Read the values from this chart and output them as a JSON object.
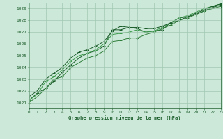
{
  "title": "Graphe pression niveau de la mer (hPa)",
  "background_color": "#cce8d8",
  "grid_color": "#a0c8b0",
  "line_color_dark": "#1a5c2a",
  "line_color_mid": "#2e7d3a",
  "line_color_light": "#3a9a4a",
  "xlim": [
    0,
    23
  ],
  "ylim": [
    1020.5,
    1029.5
  ],
  "yticks": [
    1021,
    1022,
    1023,
    1024,
    1025,
    1026,
    1027,
    1028,
    1029
  ],
  "xticks": [
    0,
    1,
    2,
    3,
    4,
    5,
    6,
    7,
    8,
    9,
    10,
    11,
    12,
    13,
    14,
    15,
    16,
    17,
    18,
    19,
    20,
    21,
    22,
    23
  ],
  "series": [
    [
      1021.2,
      1021.8,
      1022.2,
      1022.8,
      1023.6,
      1024.2,
      1024.8,
      1025.2,
      1025.4,
      1025.8,
      1027.2,
      1027.2,
      1027.4,
      1027.3,
      1027.0,
      1027.1,
      1027.2,
      1027.8,
      1028.2,
      1028.3,
      1028.5,
      1028.8,
      1029.1,
      1029.3
    ],
    [
      1021.0,
      1021.5,
      1022.2,
      1023.0,
      1023.2,
      1024.0,
      1024.4,
      1024.8,
      1025.0,
      1025.4,
      1026.2,
      1026.3,
      1026.5,
      1026.5,
      1026.8,
      1027.0,
      1027.3,
      1027.6,
      1028.0,
      1028.2,
      1028.5,
      1028.8,
      1029.0,
      1029.2
    ],
    [
      1021.2,
      1021.7,
      1022.8,
      1023.2,
      1023.8,
      1024.5,
      1025.0,
      1025.2,
      1025.5,
      1026.0,
      1026.8,
      1026.9,
      1027.0,
      1027.2,
      1027.0,
      1027.1,
      1027.4,
      1027.8,
      1028.2,
      1028.4,
      1028.7,
      1029.0,
      1029.2,
      1029.4
    ],
    [
      1021.5,
      1022.0,
      1023.0,
      1023.5,
      1024.0,
      1024.8,
      1025.3,
      1025.5,
      1025.8,
      1026.2,
      1027.1,
      1027.5,
      1027.4,
      1027.4,
      1027.3,
      1027.3,
      1027.5,
      1027.8,
      1028.0,
      1028.3,
      1028.6,
      1028.9,
      1029.2,
      1029.4
    ]
  ]
}
